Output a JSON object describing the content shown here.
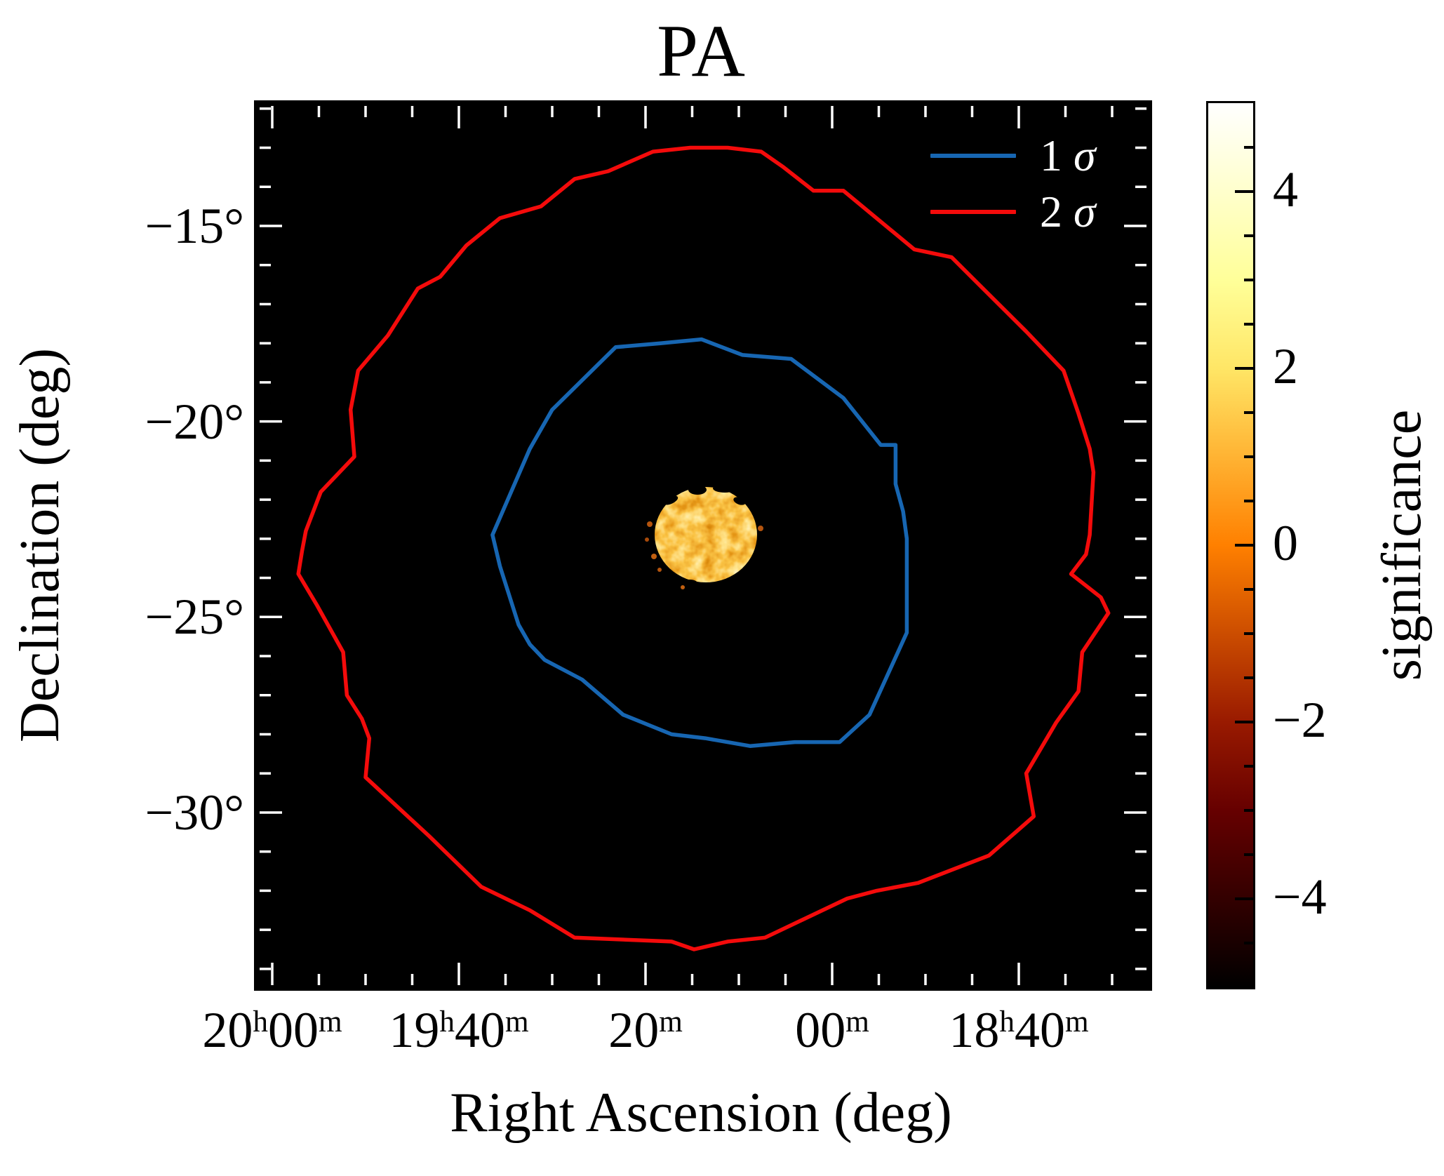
{
  "figure": {
    "background": "#ffffff",
    "plot_background": "#000000",
    "tick_color_inner": "#ffffff"
  },
  "chart_data": {
    "type": "heatmap",
    "subtype": "sky significance map with contours",
    "title": "PA",
    "xlabel": "Right Ascension (deg)",
    "ylabel": "Declination (deg)",
    "x_axis": {
      "quantity": "Right Ascension",
      "direction": "RA decreases to the right",
      "range_deg": [
        300.4,
        276.5
      ],
      "minor_step_deg": 1.25,
      "major_ticks": [
        {
          "ra_deg": 300,
          "parts": [
            {
              "t": "20"
            },
            {
              "t": "h",
              "sup": true
            },
            {
              "t": "00"
            },
            {
              "t": "m",
              "sup": true
            }
          ]
        },
        {
          "ra_deg": 295,
          "parts": [
            {
              "t": "19"
            },
            {
              "t": "h",
              "sup": true
            },
            {
              "t": "40"
            },
            {
              "t": "m",
              "sup": true
            }
          ]
        },
        {
          "ra_deg": 290,
          "parts": [
            {
              "t": "20"
            },
            {
              "t": "m",
              "sup": true
            }
          ]
        },
        {
          "ra_deg": 285,
          "parts": [
            {
              "t": "00"
            },
            {
              "t": "m",
              "sup": true
            }
          ]
        },
        {
          "ra_deg": 280,
          "parts": [
            {
              "t": "18"
            },
            {
              "t": "h",
              "sup": true
            },
            {
              "t": "40"
            },
            {
              "t": "m",
              "sup": true
            }
          ]
        }
      ]
    },
    "y_axis": {
      "quantity": "Declination",
      "range_deg": [
        -34.5,
        -11.9
      ],
      "minor_step_deg": 1,
      "major_ticks": [
        {
          "dec_deg": -15,
          "label": "−15°"
        },
        {
          "dec_deg": -20,
          "label": "−20°"
        },
        {
          "dec_deg": -25,
          "label": "−25°"
        },
        {
          "dec_deg": -30,
          "label": "−30°"
        }
      ]
    },
    "colorbar": {
      "label": "significance",
      "vmin": -5,
      "vmax": 5,
      "major_tick_values": [
        4,
        2,
        0,
        -2,
        -4
      ],
      "major_tick_labels": [
        "4",
        "2",
        "0",
        "−2",
        "−4"
      ],
      "minor_step": 0.5,
      "gradient_top_to_bottom": [
        "#ffffff",
        "#ffffcc",
        "#ffff99",
        "#ffe666",
        "#ffb333",
        "#ff8000",
        "#cc4d00",
        "#991a00",
        "#660000",
        "#330000",
        "#000000"
      ]
    },
    "source_region": {
      "center_ra_deg": 288.4,
      "center_dec_deg": -22.9,
      "radius_deg": 1.3,
      "appearance": "speckled orange-yellow disk (significance values roughly -1 to +5)"
    },
    "contours": [
      {
        "name": "1 σ",
        "color": "#1766b2",
        "points_ra_dec": [
          [
            294.1,
            -22.9
          ],
          [
            293.1,
            -20.7
          ],
          [
            292.5,
            -19.7
          ],
          [
            290.8,
            -18.1
          ],
          [
            289.6,
            -18.0
          ],
          [
            288.5,
            -17.9
          ],
          [
            287.4,
            -18.3
          ],
          [
            286.1,
            -18.4
          ],
          [
            284.7,
            -19.4
          ],
          [
            283.7,
            -20.6
          ],
          [
            283.3,
            -20.6
          ],
          [
            283.3,
            -21.6
          ],
          [
            283.1,
            -22.3
          ],
          [
            283.0,
            -23.0
          ],
          [
            283.0,
            -25.4
          ],
          [
            284.0,
            -27.5
          ],
          [
            284.8,
            -28.2
          ],
          [
            286.0,
            -28.2
          ],
          [
            287.2,
            -28.3
          ],
          [
            288.4,
            -28.1
          ],
          [
            289.3,
            -28.0
          ],
          [
            290.6,
            -27.5
          ],
          [
            291.7,
            -26.6
          ],
          [
            292.7,
            -26.1
          ],
          [
            293.1,
            -25.7
          ],
          [
            293.4,
            -25.2
          ],
          [
            293.9,
            -23.7
          ]
        ]
      },
      {
        "name": "2 σ",
        "color": "#f40b0b",
        "points_ra_dec": [
          [
            299.2,
            -23.3
          ],
          [
            299.1,
            -22.8
          ],
          [
            298.7,
            -21.8
          ],
          [
            297.8,
            -20.9
          ],
          [
            297.9,
            -19.7
          ],
          [
            297.7,
            -18.7
          ],
          [
            296.9,
            -17.8
          ],
          [
            296.1,
            -16.6
          ],
          [
            295.5,
            -16.3
          ],
          [
            294.8,
            -15.5
          ],
          [
            293.9,
            -14.8
          ],
          [
            292.8,
            -14.5
          ],
          [
            291.9,
            -13.8
          ],
          [
            291.0,
            -13.6
          ],
          [
            289.8,
            -13.1
          ],
          [
            288.8,
            -13.0
          ],
          [
            287.8,
            -13.0
          ],
          [
            286.9,
            -13.1
          ],
          [
            286.3,
            -13.5
          ],
          [
            285.5,
            -14.1
          ],
          [
            284.7,
            -14.1
          ],
          [
            282.8,
            -15.6
          ],
          [
            281.8,
            -15.8
          ],
          [
            279.8,
            -17.7
          ],
          [
            279.0,
            -18.5
          ],
          [
            278.8,
            -18.7
          ],
          [
            278.4,
            -19.8
          ],
          [
            278.1,
            -20.7
          ],
          [
            278.0,
            -21.3
          ],
          [
            278.1,
            -22.9
          ],
          [
            278.2,
            -23.4
          ],
          [
            278.6,
            -23.9
          ],
          [
            277.8,
            -24.5
          ],
          [
            277.6,
            -24.9
          ],
          [
            278.3,
            -25.9
          ],
          [
            278.4,
            -26.9
          ],
          [
            279.0,
            -27.7
          ],
          [
            279.8,
            -29.0
          ],
          [
            279.6,
            -30.1
          ],
          [
            280.8,
            -31.1
          ],
          [
            282.7,
            -31.8
          ],
          [
            283.8,
            -32.0
          ],
          [
            284.6,
            -32.2
          ],
          [
            286.8,
            -33.2
          ],
          [
            287.8,
            -33.3
          ],
          [
            288.7,
            -33.5
          ],
          [
            289.3,
            -33.3
          ],
          [
            291.9,
            -33.2
          ],
          [
            293.1,
            -32.5
          ],
          [
            294.4,
            -31.9
          ],
          [
            295.8,
            -30.6
          ],
          [
            297.5,
            -29.1
          ],
          [
            297.4,
            -28.1
          ],
          [
            297.6,
            -27.6
          ],
          [
            298.0,
            -27.0
          ],
          [
            298.1,
            -25.9
          ],
          [
            298.8,
            -24.7
          ],
          [
            299.3,
            -23.9
          ]
        ]
      }
    ],
    "legend": {
      "position": "upper right",
      "text_color": "#ffffff",
      "entries": [
        {
          "num": "1 ",
          "sym": "σ",
          "color": "#1766b2"
        },
        {
          "num": "2 ",
          "sym": "σ",
          "color": "#f40b0b"
        }
      ]
    }
  }
}
